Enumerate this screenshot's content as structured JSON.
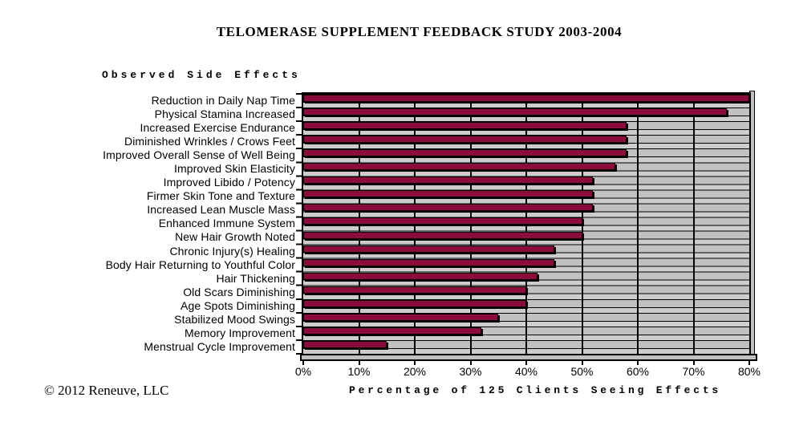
{
  "header": {
    "title": "TELOMERASE SUPPLEMENT FEEDBACK STUDY 2003-2004",
    "subtitle": "Observed Side Effects"
  },
  "footer": {
    "copyright": "© 2012 Reneuve, LLC"
  },
  "chart_data": {
    "type": "bar",
    "orientation": "horizontal",
    "title": "TELOMERASE SUPPLEMENT FEEDBACK STUDY 2003-2004",
    "subtitle": "Observed Side Effects",
    "xlabel": "Percentage of 125 Clients Seeing Effects",
    "ylabel": "",
    "xlim": [
      0,
      80
    ],
    "grid": true,
    "legend": false,
    "x_ticks": [
      "0%",
      "10%",
      "20%",
      "30%",
      "40%",
      "50%",
      "60%",
      "70%",
      "80%"
    ],
    "categories": [
      "Reduction in Daily Nap Time",
      "Physical Stamina Increased",
      "Increased Exercise Endurance",
      "Diminished Wrinkles / Crows Feet",
      "Improved Overall Sense of Well Being",
      "Improved Skin Elasticity",
      "Improved Libido / Potency",
      "Firmer Skin Tone and Texture",
      "Increased Lean Muscle Mass",
      "Enhanced Immune System",
      "New Hair Growth Noted",
      "Chronic Injury(s) Healing",
      "Body Hair Returning to Youthful Color",
      "Hair Thickening",
      "Old Scars Diminishing",
      "Age Spots Diminishing",
      "Stabilized Mood Swings",
      "Memory Improvement",
      "Menstrual Cycle Improvement"
    ],
    "values": [
      80,
      76,
      58,
      58,
      58,
      56,
      52,
      52,
      52,
      50,
      50,
      45,
      45,
      42,
      40,
      40,
      35,
      32,
      15
    ],
    "bar_color": "#8B0B3C",
    "plot_bg": "#C0C0C0",
    "grid_color": "#000000"
  }
}
